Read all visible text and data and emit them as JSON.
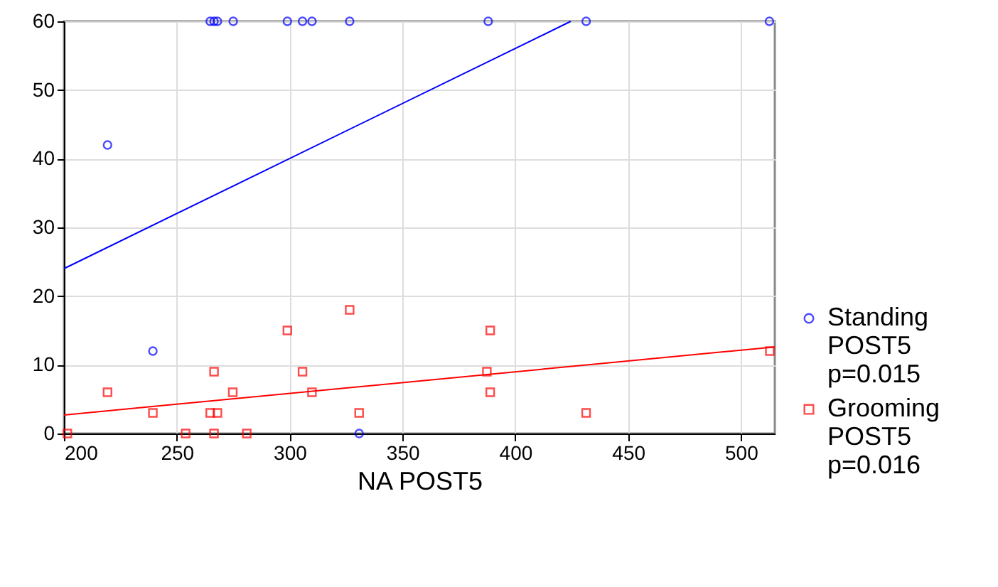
{
  "chart_data": {
    "type": "scatter",
    "xlabel": "NA POST5",
    "xlim": [
      200,
      515
    ],
    "ylim": [
      0,
      60
    ],
    "xticks": [
      200,
      250,
      300,
      350,
      400,
      450,
      500
    ],
    "yticks": [
      0,
      10,
      20,
      30,
      40,
      50,
      60
    ],
    "grid": true,
    "legend": "bottom right",
    "series": [
      {
        "name": "Standing POST5 p=0.015",
        "color": "#0000ff",
        "marker": "circle",
        "x": [
          264.8,
          266.5,
          268,
          275,
          299,
          305.7,
          309.9,
          326.6,
          388,
          431.4,
          512.6,
          219.3,
          239.4,
          330.8
        ],
        "values": [
          60,
          60,
          60,
          60,
          60,
          60,
          60,
          60,
          60,
          60,
          60,
          42,
          12,
          0
        ]
      },
      {
        "name": "Grooming POST5 p=0.016",
        "color": "#ff0000",
        "marker": "square",
        "x": [
          201.5,
          219.3,
          239.4,
          253.9,
          264.8,
          268,
          266.5,
          266.5,
          274.8,
          281,
          299,
          305.7,
          309.9,
          326.6,
          330.8,
          388.9,
          387.4,
          388.9,
          431.4,
          512.8
        ],
        "values": [
          0,
          6,
          3,
          0,
          3,
          3,
          0,
          9,
          6,
          0,
          15,
          9,
          6,
          18,
          3,
          15,
          9,
          6,
          3,
          12
        ]
      },
      {
        "type": "line",
        "color": "#0000ff",
        "x": [
          200,
          424.6
        ],
        "values": [
          24,
          60
        ]
      },
      {
        "type": "line",
        "color": "#ff0000",
        "x": [
          200,
          515
        ],
        "values": [
          2.7,
          12.6
        ]
      }
    ]
  }
}
